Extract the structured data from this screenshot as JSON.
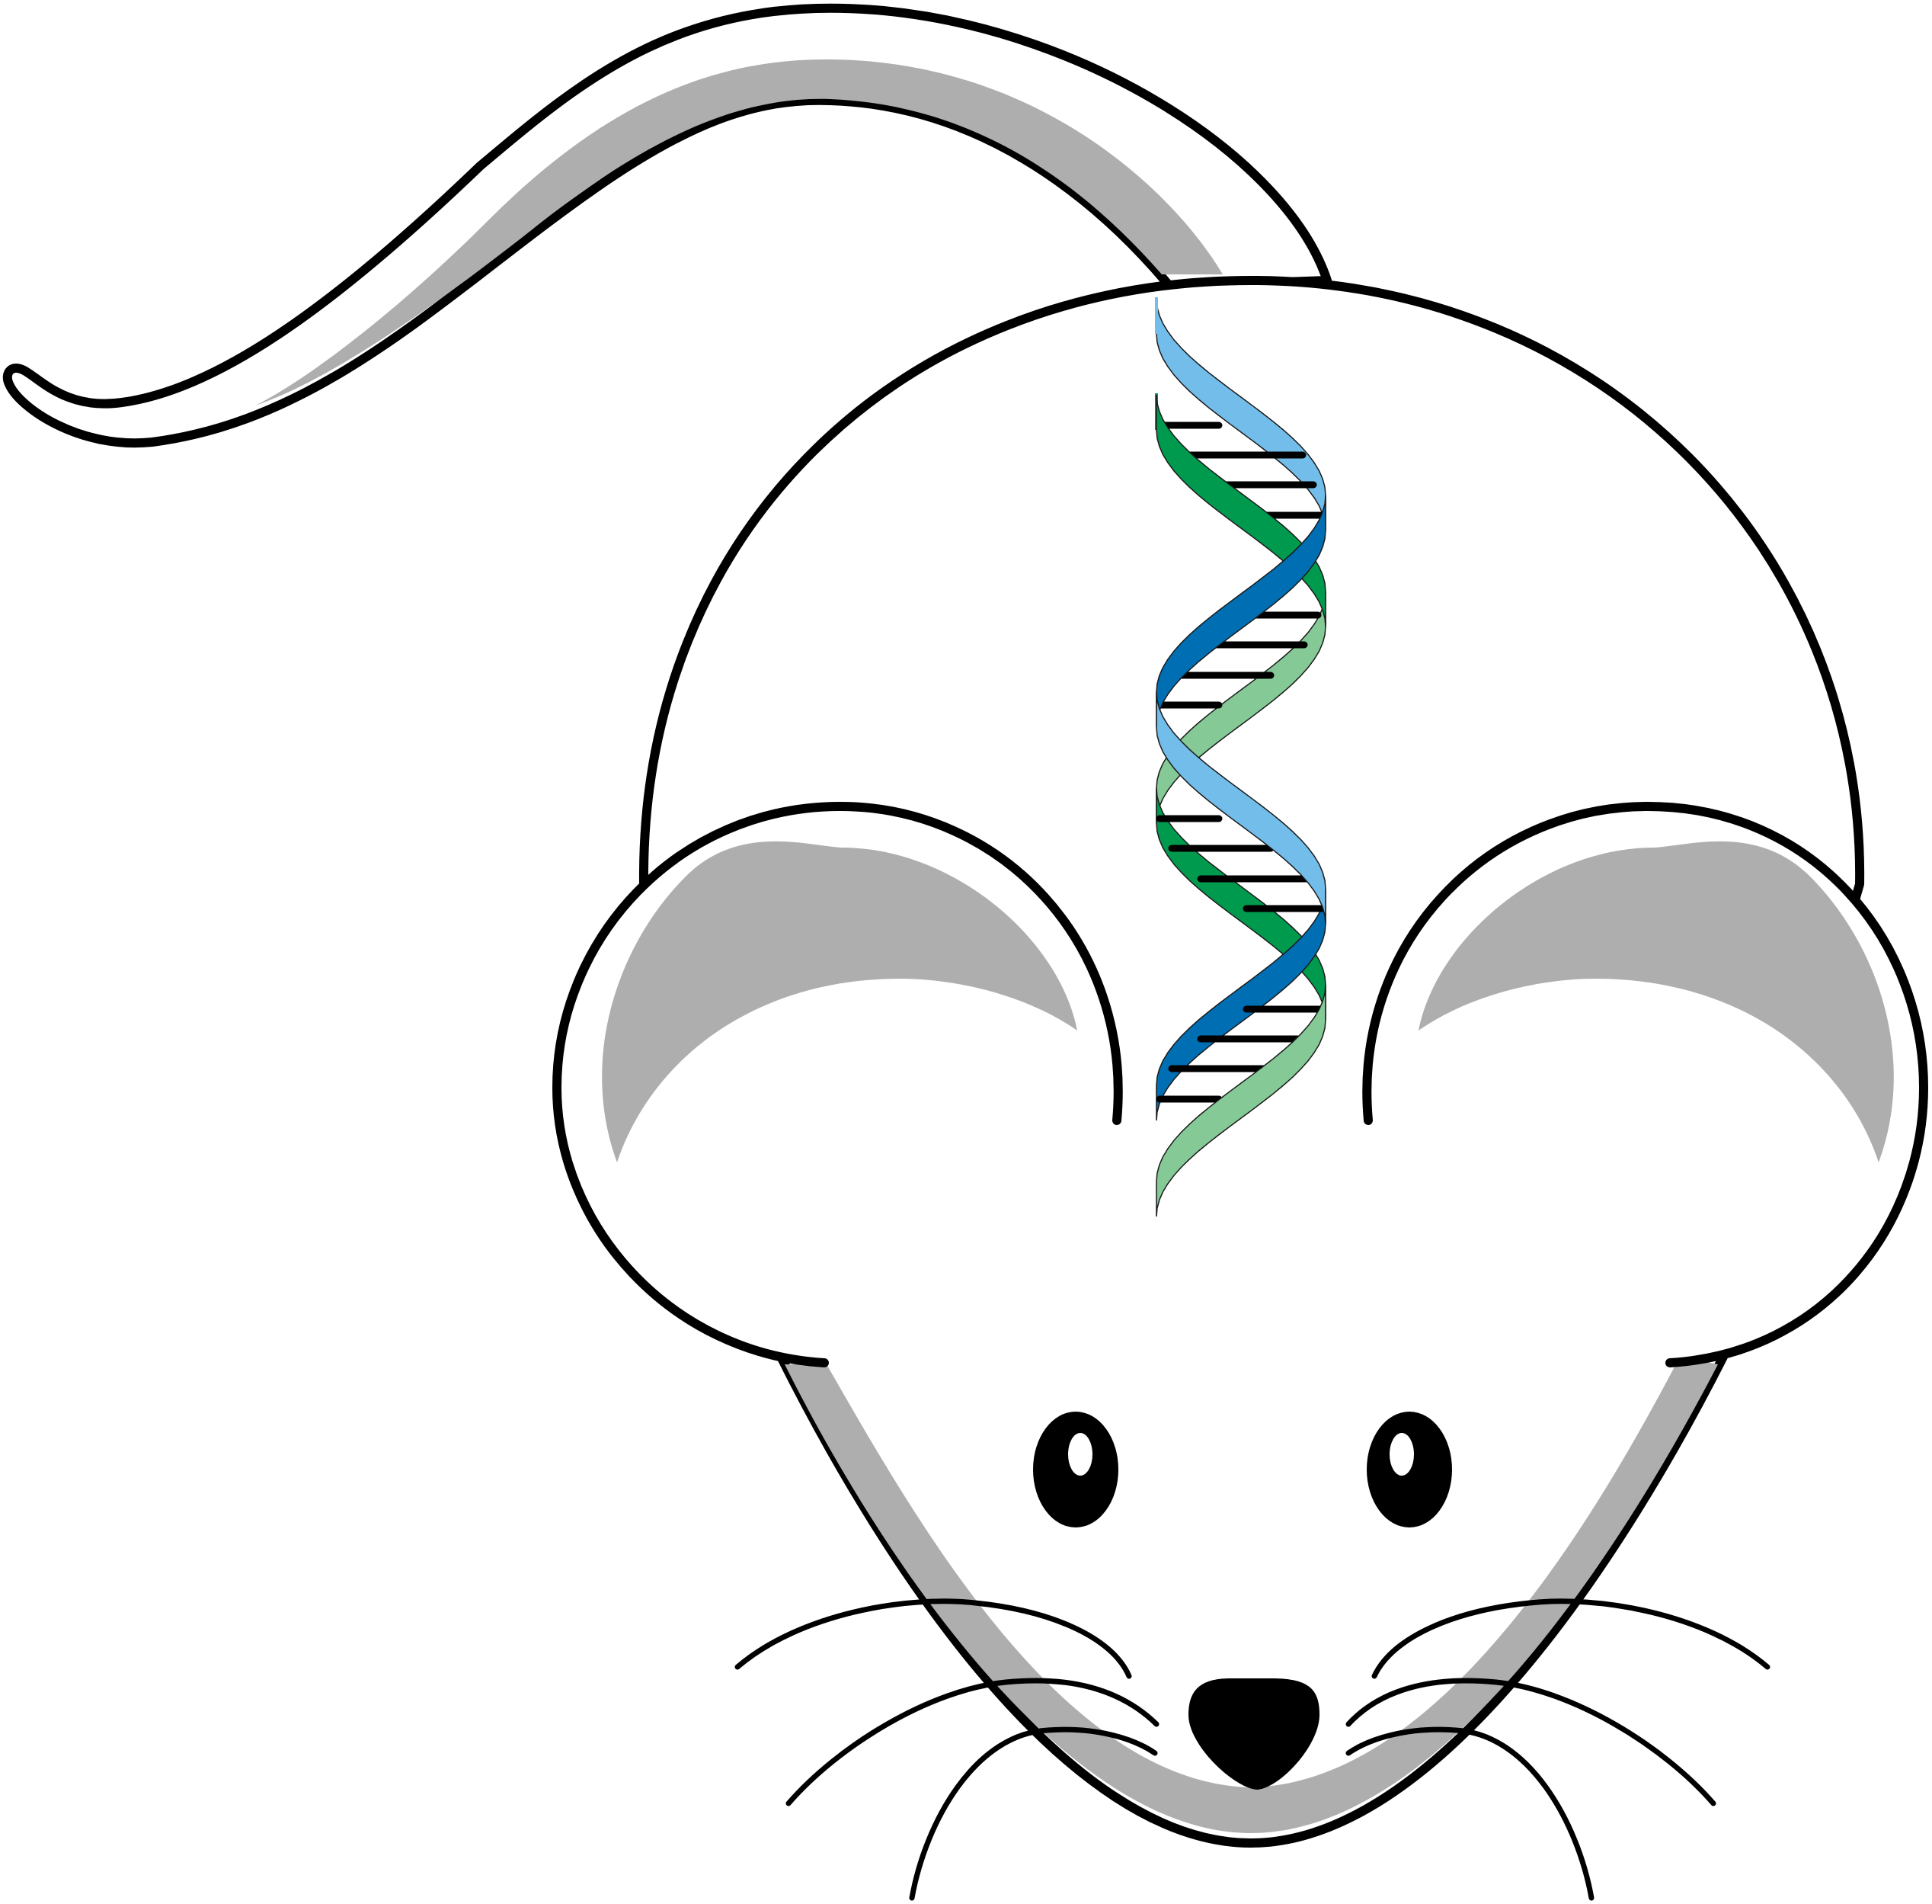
{
  "illustration": {
    "subject": "mouse-with-dna",
    "colors": {
      "outline": "#000000",
      "body_fill": "#ffffff",
      "shade": "#aeaeae",
      "eye": "#000000",
      "eye_highlight": "#ffffff",
      "nose": "#000000",
      "dna_strand_light_blue": "#73bdea",
      "dna_strand_dark_blue": "#006eb2",
      "dna_strand_dark_green": "#009a4e",
      "dna_strand_light_green": "#84c996",
      "dna_base_pair": "#000000"
    },
    "icons": [
      "mouse-icon",
      "dna-helix-icon"
    ]
  }
}
